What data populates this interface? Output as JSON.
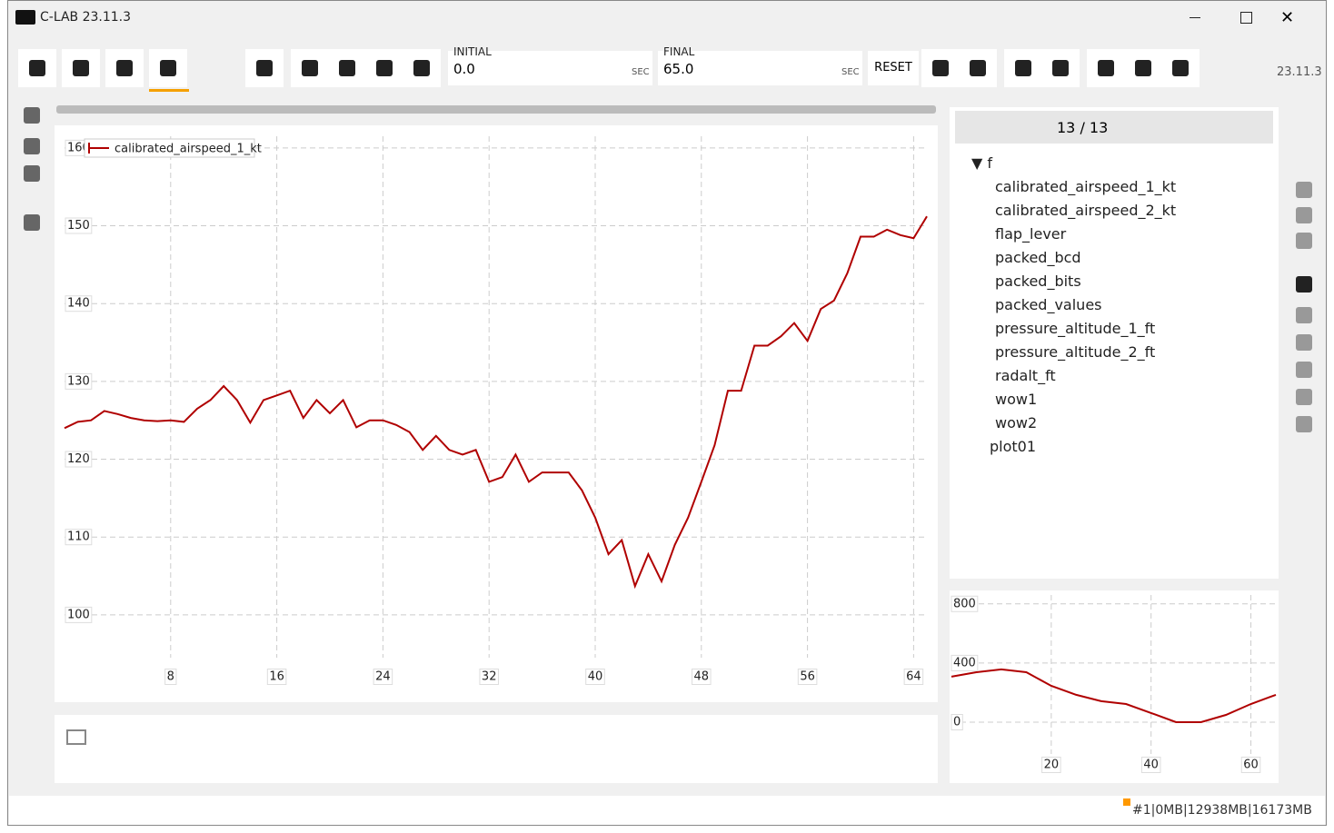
{
  "window": {
    "title": "C-LAB 23.11.3"
  },
  "toolbar": {
    "initial_label": "INITIAL",
    "initial_value": "0.0",
    "initial_unit": "SEC",
    "final_label": "FINAL",
    "final_value": "65.0",
    "final_unit": "SEC",
    "reset": "RESET",
    "version": "23.11.3"
  },
  "tree": {
    "count": "13 / 13",
    "root": "f",
    "items": [
      "calibrated_airspeed_1_kt",
      "calibrated_airspeed_2_kt",
      "flap_lever",
      "packed_bcd",
      "packed_bits",
      "packed_values",
      "pressure_altitude_1_ft",
      "pressure_altitude_2_ft",
      "radalt_ft",
      "wow1",
      "wow2"
    ],
    "plot": "plot01"
  },
  "chart_data": [
    {
      "type": "line",
      "x": [
        0,
        1,
        2,
        3,
        4,
        5,
        6,
        7,
        8,
        9,
        10,
        11,
        12,
        13,
        14,
        15,
        16,
        17,
        18,
        19,
        20,
        21,
        22,
        23,
        24,
        25,
        26,
        27,
        28,
        29,
        30,
        31,
        32,
        33,
        34,
        35,
        36,
        37,
        38,
        39,
        40,
        41,
        42,
        43,
        44,
        45,
        46,
        47,
        48,
        49,
        50,
        51,
        52,
        53,
        54,
        55,
        56,
        57,
        58,
        59,
        60,
        61,
        62,
        63,
        64,
        65
      ],
      "series": [
        {
          "name": "calibrated_airspeed_1_kt",
          "color": "#b00000",
          "values": [
            124,
            124.8,
            125,
            126.2,
            125.8,
            125.3,
            125,
            124.9,
            125,
            124.8,
            126.5,
            127.6,
            129.4,
            127.6,
            124.7,
            127.6,
            128.2,
            128.8,
            125.3,
            127.6,
            125.9,
            127.6,
            124.1,
            125,
            125,
            124.4,
            123.5,
            121.2,
            123,
            121.2,
            120.6,
            121.2,
            117.1,
            117.7,
            120.6,
            117.1,
            118.3,
            118.3,
            118.3,
            116,
            112.5,
            107.8,
            109.6,
            103.7,
            107.8,
            104.3,
            109,
            112.5,
            117.1,
            121.8,
            128.8,
            128.8,
            134.6,
            134.6,
            135.8,
            137.5,
            135.2,
            139.3,
            140.4,
            143.9,
            148.6,
            148.6,
            149.5,
            148.8,
            148.4,
            151.2
          ]
        }
      ],
      "xlim": [
        0,
        65
      ],
      "ylim": [
        94.5,
        161.5
      ],
      "xticks": [
        8,
        16,
        24,
        32,
        40,
        48,
        56,
        64
      ],
      "yticks": [
        100,
        110,
        120,
        130,
        140,
        150,
        160
      ],
      "grid": true,
      "legend": "top-left"
    },
    {
      "type": "line",
      "x": [
        0,
        5,
        10,
        15,
        20,
        25,
        30,
        35,
        40,
        45,
        50,
        55,
        60,
        65
      ],
      "series": [
        {
          "color": "#b00000",
          "values": [
            308,
            338,
            357,
            338,
            246,
            185,
            142,
            123,
            62,
            0,
            0,
            49,
            123,
            185
          ]
        }
      ],
      "xlim": [
        0,
        65
      ],
      "ylim": [
        -215,
        860
      ],
      "xticks": [
        20,
        40,
        60
      ],
      "yticks": [
        0,
        400,
        800
      ],
      "grid": true
    }
  ],
  "status": "#1|0MB|12938MB|16173MB"
}
